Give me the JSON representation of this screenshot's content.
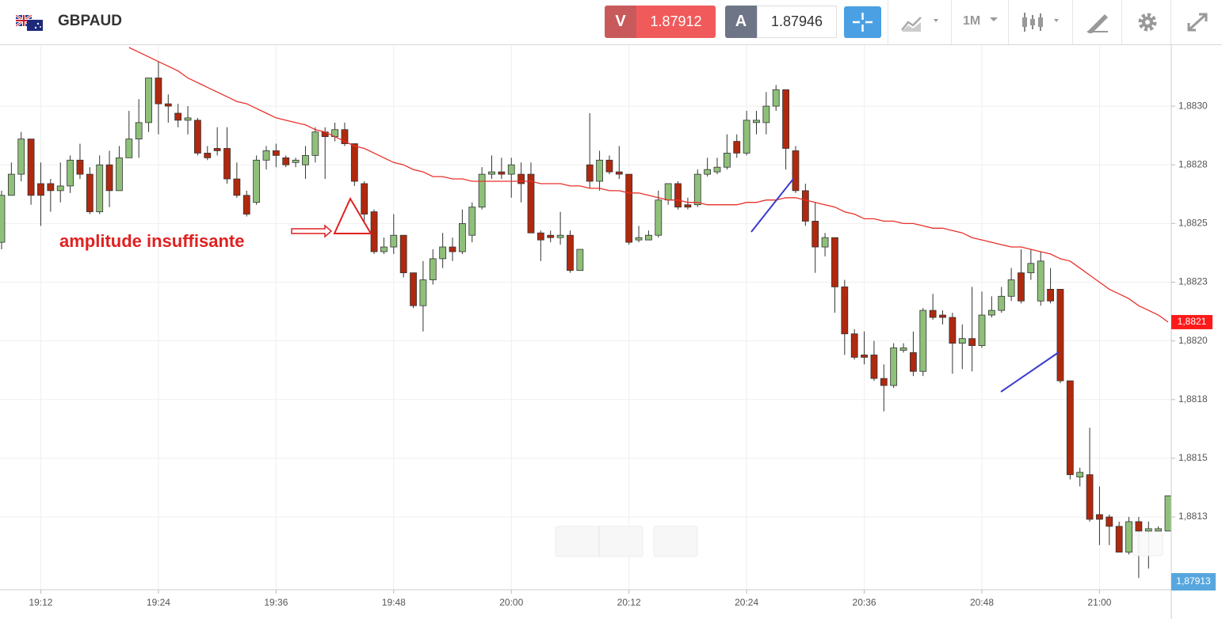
{
  "header": {
    "symbol": "GBPAUD",
    "sell_label": "V",
    "sell_price": "1.87912",
    "buy_label": "A",
    "buy_price": "1.87946",
    "timeframe": "1M"
  },
  "chart_data": {
    "type": "candlestick",
    "annotation": "amplitude insuffisante",
    "categories": [
      null,
      null,
      null,
      null,
      "19:12",
      null,
      null,
      null,
      null,
      null,
      null,
      null,
      null,
      null,
      null,
      null,
      "19:24",
      null,
      null,
      null,
      null,
      null,
      null,
      null,
      null,
      null,
      null,
      null,
      "19:36",
      null,
      null,
      null,
      null,
      null,
      null,
      null,
      null,
      null,
      null,
      null,
      "19:48",
      null,
      null,
      null,
      null,
      null,
      null,
      null,
      null,
      null,
      null,
      null,
      "20:00",
      null,
      null,
      null,
      null,
      null,
      null,
      null,
      null,
      null,
      null,
      null,
      "20:12",
      null,
      null,
      null,
      null,
      null,
      null,
      null,
      null,
      null,
      null,
      null,
      "20:24",
      null,
      null,
      null,
      null,
      null,
      null,
      null,
      null,
      null,
      null,
      null,
      "20:36",
      null,
      null,
      null,
      null,
      null,
      null,
      null,
      null,
      null,
      null,
      null,
      "20:48",
      null,
      null,
      null,
      null,
      null,
      null,
      null,
      null,
      null,
      null,
      null,
      "21:00",
      null,
      null,
      null,
      null,
      null,
      null,
      null
    ],
    "open": [
      1.88242,
      1.88262,
      1.88271,
      1.88286,
      1.88267,
      1.88267,
      1.88264,
      1.88266,
      1.88277,
      1.88271,
      1.88255,
      1.88275,
      1.88264,
      1.88278,
      1.88286,
      1.88293,
      1.88312,
      1.88301,
      1.88297,
      1.88294,
      1.88294,
      1.8828,
      1.88282,
      1.88282,
      1.88269,
      1.88262,
      1.88259,
      1.88277,
      1.88281,
      1.88278,
      1.88276,
      1.88275,
      1.88279,
      1.88289,
      1.88287,
      1.8829,
      1.88284,
      1.88267,
      1.88255,
      1.88238,
      1.8824,
      1.88245,
      1.88229,
      1.88215,
      1.88226,
      1.88235,
      1.8824,
      1.88238,
      1.88245,
      1.88257,
      1.88271,
      1.88272,
      1.88271,
      1.88271,
      1.88271,
      1.88246,
      1.88245,
      1.88244,
      1.88245,
      1.8823,
      1.88275,
      1.88268,
      1.88277,
      1.88272,
      1.88271,
      1.88243,
      1.88243,
      1.88245,
      1.8826,
      1.88267,
      1.88258,
      1.88258,
      1.88271,
      1.88272,
      1.88274,
      1.88285,
      1.8828,
      1.88293,
      1.88293,
      1.883,
      1.88307,
      1.88281,
      1.88264,
      1.88251,
      1.8824,
      1.88244,
      1.88223,
      1.88203,
      1.88194,
      1.88194,
      1.88184,
      1.88181,
      1.88196,
      1.88195,
      1.88187,
      1.88213,
      1.88211,
      1.8821,
      1.88199,
      1.88201,
      1.88198,
      1.88211,
      1.88213,
      1.88219,
      1.88229,
      1.88229,
      1.88217,
      1.88222,
      1.88222,
      1.88183,
      1.88142,
      1.88143,
      1.88126,
      1.88125,
      1.88121,
      1.8811,
      1.88123,
      1.88119,
      1.88119,
      1.88119
    ],
    "high": [
      1.88264,
      1.88276,
      1.88289,
      1.88286,
      1.88276,
      1.88269,
      1.88276,
      1.88279,
      1.88284,
      1.88274,
      1.88279,
      1.88281,
      1.88283,
      1.88298,
      1.88303,
      1.88312,
      1.88319,
      1.88305,
      1.88301,
      1.883,
      1.88295,
      1.88283,
      1.88291,
      1.88291,
      1.88276,
      1.88264,
      1.88279,
      1.88283,
      1.88284,
      1.88279,
      1.88278,
      1.88283,
      1.88291,
      1.88291,
      1.88293,
      1.88293,
      1.88284,
      1.88268,
      1.88256,
      1.88244,
      1.88254,
      1.88245,
      1.88229,
      1.88234,
      1.88239,
      1.88246,
      1.88244,
      1.88256,
      1.88259,
      1.88274,
      1.88279,
      1.88278,
      1.88278,
      1.88276,
      1.88276,
      1.88247,
      1.88247,
      1.88255,
      1.88247,
      1.88239,
      1.88297,
      1.88281,
      1.88279,
      1.88283,
      1.88271,
      1.88249,
      1.88247,
      1.88264,
      1.88267,
      1.88268,
      1.88261,
      1.88273,
      1.88278,
      1.88278,
      1.88288,
      1.88288,
      1.88298,
      1.88298,
      1.88306,
      1.88309,
      1.88307,
      1.88283,
      1.88267,
      1.88259,
      1.88246,
      1.88244,
      1.88226,
      1.88205,
      1.88204,
      1.882,
      1.8819,
      1.88199,
      1.88199,
      1.88204,
      1.88214,
      1.8822,
      1.88213,
      1.88212,
      1.88207,
      1.88223,
      1.88221,
      1.88219,
      1.88223,
      1.88231,
      1.88239,
      1.88239,
      1.88238,
      1.88231,
      1.88222,
      1.88183,
      1.88146,
      1.88163,
      1.88138,
      1.88126,
      1.88123,
      1.88125,
      1.88125,
      1.88123,
      1.88121,
      1.88134
    ],
    "low": [
      1.88239,
      1.88262,
      1.88268,
      1.88258,
      1.88249,
      1.88255,
      1.88259,
      1.88263,
      1.88269,
      1.88254,
      1.88254,
      1.88257,
      1.88264,
      1.88278,
      1.88278,
      1.88289,
      1.88288,
      1.88293,
      1.88291,
      1.88288,
      1.88279,
      1.88277,
      1.88279,
      1.88267,
      1.88261,
      1.88253,
      1.88258,
      1.88273,
      1.88274,
      1.88274,
      1.88274,
      1.88269,
      1.88276,
      1.88269,
      1.88285,
      1.88283,
      1.88266,
      1.88251,
      1.88237,
      1.88237,
      1.88237,
      1.88227,
      1.88214,
      1.88204,
      1.88224,
      1.88231,
      1.88234,
      1.88237,
      1.88242,
      1.88256,
      1.88269,
      1.88269,
      1.88261,
      1.88259,
      1.88246,
      1.88234,
      1.88242,
      1.88241,
      1.88229,
      1.8823,
      1.88265,
      1.88264,
      1.88271,
      1.88269,
      1.88241,
      1.88242,
      1.88243,
      1.88244,
      1.88258,
      1.88256,
      1.88256,
      1.88257,
      1.8827,
      1.88271,
      1.88273,
      1.88278,
      1.88279,
      1.88288,
      1.88288,
      1.88298,
      1.88273,
      1.88263,
      1.88249,
      1.88229,
      1.88236,
      1.88212,
      1.88194,
      1.88192,
      1.8819,
      1.88183,
      1.8817,
      1.8818,
      1.88195,
      1.88185,
      1.88185,
      1.88209,
      1.88207,
      1.88186,
      1.88188,
      1.88187,
      1.88197,
      1.8821,
      1.88212,
      1.88217,
      1.88216,
      1.88226,
      1.88215,
      1.88216,
      1.88182,
      1.88141,
      1.88138,
      1.88123,
      1.88113,
      1.88113,
      1.8811,
      1.88109,
      1.88099,
      1.88103,
      1.88119,
      1.88119
    ],
    "close": [
      1.88262,
      1.88271,
      1.88286,
      1.88262,
      1.88262,
      1.88264,
      1.88266,
      1.88277,
      1.88271,
      1.88255,
      1.88275,
      1.88264,
      1.88278,
      1.88286,
      1.88293,
      1.88312,
      1.88301,
      1.883,
      1.88294,
      1.88295,
      1.8828,
      1.88278,
      1.88281,
      1.88269,
      1.88262,
      1.88254,
      1.88277,
      1.88281,
      1.88279,
      1.88275,
      1.88277,
      1.88279,
      1.88289,
      1.88287,
      1.8829,
      1.88284,
      1.88268,
      1.88254,
      1.88238,
      1.8824,
      1.88245,
      1.88229,
      1.88215,
      1.88226,
      1.88235,
      1.8824,
      1.88238,
      1.8825,
      1.88257,
      1.88271,
      1.88272,
      1.88271,
      1.88275,
      1.88267,
      1.88246,
      1.88243,
      1.88244,
      1.88245,
      1.8823,
      1.88239,
      1.88268,
      1.88277,
      1.88272,
      1.88271,
      1.88242,
      1.88244,
      1.88245,
      1.8826,
      1.88267,
      1.88257,
      1.88257,
      1.88271,
      1.88273,
      1.88274,
      1.8828,
      1.8828,
      1.88294,
      1.88294,
      1.883,
      1.88307,
      1.88282,
      1.88264,
      1.88251,
      1.8824,
      1.88244,
      1.88223,
      1.88203,
      1.88193,
      1.88193,
      1.88184,
      1.88181,
      1.88197,
      1.88197,
      1.88187,
      1.88213,
      1.8821,
      1.8821,
      1.88199,
      1.88201,
      1.88198,
      1.88211,
      1.88213,
      1.88219,
      1.88226,
      1.88217,
      1.88233,
      1.88234,
      1.88217,
      1.88183,
      1.88143,
      1.88144,
      1.88124,
      1.88124,
      1.88121,
      1.8811,
      1.88123,
      1.88119,
      1.8812,
      1.8812,
      1.88134
    ],
    "up_color": "#8fc07a",
    "down_color": "#b0290e",
    "ma": {
      "color": "#e8302a",
      "values": [
        null,
        null,
        null,
        null,
        null,
        null,
        null,
        null,
        null,
        null,
        null,
        null,
        null,
        1.88325,
        1.88323,
        1.88321,
        1.88319,
        1.88317,
        1.88315,
        1.88312,
        1.8831,
        1.88308,
        1.88306,
        1.88304,
        1.88302,
        1.88301,
        1.88299,
        1.88297,
        1.88295,
        1.88294,
        1.88293,
        1.88292,
        1.8829,
        1.88289,
        1.88287,
        1.88285,
        1.88283,
        1.88282,
        1.8828,
        1.88278,
        1.88276,
        1.88275,
        1.88273,
        1.88272,
        1.8827,
        1.8827,
        1.88269,
        1.88269,
        1.88268,
        1.88268,
        1.88268,
        1.88268,
        1.88268,
        1.88268,
        1.88268,
        1.88267,
        1.88267,
        1.88267,
        1.88266,
        1.88266,
        1.88265,
        1.88265,
        1.88264,
        1.88264,
        1.88263,
        1.88263,
        1.88262,
        1.88261,
        1.8826,
        1.8826,
        1.88259,
        1.88259,
        1.88258,
        1.88258,
        1.88258,
        1.88258,
        1.88259,
        1.88259,
        1.8826,
        1.8826,
        1.88261,
        1.88261,
        1.8826,
        1.88259,
        1.88258,
        1.88257,
        1.88255,
        1.88254,
        1.88252,
        1.88252,
        1.88251,
        1.88251,
        1.8825,
        1.8825,
        1.88249,
        1.88248,
        1.88248,
        1.88247,
        1.88246,
        1.88244,
        1.88243,
        1.88242,
        1.88241,
        1.8824,
        1.8824,
        1.88239,
        1.88238,
        1.88237,
        1.88235,
        1.88234,
        1.88231,
        1.88228,
        1.88225,
        1.88222,
        1.8822,
        1.88218,
        1.88215,
        1.88213,
        1.88211,
        1.88208
      ]
    },
    "ma_label": {
      "value": 1.88208,
      "label": "1,8821"
    },
    "bid_label": "1,87913",
    "ylim": [
      1.88094,
      1.88326
    ],
    "yticks": [
      {
        "value": 1.883,
        "label": "1,8830"
      },
      {
        "value": 1.88275,
        "label": "1,8828"
      },
      {
        "value": 1.8825,
        "label": "1,8825"
      },
      {
        "value": 1.88225,
        "label": "1,8823"
      },
      {
        "value": 1.882,
        "label": "1,8820"
      },
      {
        "value": 1.88175,
        "label": "1,8818"
      },
      {
        "value": 1.8815,
        "label": "1,8815"
      },
      {
        "value": 1.88125,
        "label": "1,8813"
      }
    ],
    "grid": true
  }
}
